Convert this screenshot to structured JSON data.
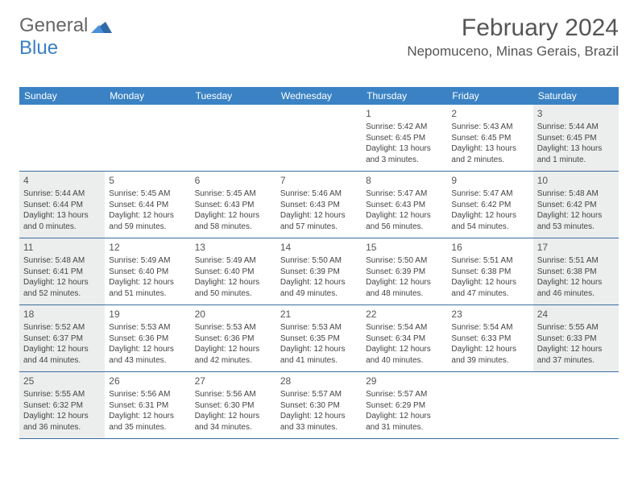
{
  "brand": {
    "part1": "General",
    "part2": "Blue"
  },
  "title": "February 2024",
  "location": "Nepomuceno, Minas Gerais, Brazil",
  "weekdays": [
    "Sunday",
    "Monday",
    "Tuesday",
    "Wednesday",
    "Thursday",
    "Friday",
    "Saturday"
  ],
  "leading_blanks": 4,
  "colors": {
    "header_bg": "#3a82c4",
    "rule": "#3a6ea0",
    "shade": "#eceded",
    "text": "#555"
  },
  "fonts": {
    "title_size": 30,
    "location_size": 17,
    "weekday_size": 12,
    "daynum_size": 12,
    "body_size": 10
  },
  "days": [
    {
      "n": 1,
      "shade": false,
      "sunrise": "5:42 AM",
      "sunset": "6:45 PM",
      "daylight": "13 hours and 3 minutes."
    },
    {
      "n": 2,
      "shade": false,
      "sunrise": "5:43 AM",
      "sunset": "6:45 PM",
      "daylight": "13 hours and 2 minutes."
    },
    {
      "n": 3,
      "shade": true,
      "sunrise": "5:44 AM",
      "sunset": "6:45 PM",
      "daylight": "13 hours and 1 minute."
    },
    {
      "n": 4,
      "shade": true,
      "sunrise": "5:44 AM",
      "sunset": "6:44 PM",
      "daylight": "13 hours and 0 minutes."
    },
    {
      "n": 5,
      "shade": false,
      "sunrise": "5:45 AM",
      "sunset": "6:44 PM",
      "daylight": "12 hours and 59 minutes."
    },
    {
      "n": 6,
      "shade": false,
      "sunrise": "5:45 AM",
      "sunset": "6:43 PM",
      "daylight": "12 hours and 58 minutes."
    },
    {
      "n": 7,
      "shade": false,
      "sunrise": "5:46 AM",
      "sunset": "6:43 PM",
      "daylight": "12 hours and 57 minutes."
    },
    {
      "n": 8,
      "shade": false,
      "sunrise": "5:47 AM",
      "sunset": "6:43 PM",
      "daylight": "12 hours and 56 minutes."
    },
    {
      "n": 9,
      "shade": false,
      "sunrise": "5:47 AM",
      "sunset": "6:42 PM",
      "daylight": "12 hours and 54 minutes."
    },
    {
      "n": 10,
      "shade": true,
      "sunrise": "5:48 AM",
      "sunset": "6:42 PM",
      "daylight": "12 hours and 53 minutes."
    },
    {
      "n": 11,
      "shade": true,
      "sunrise": "5:48 AM",
      "sunset": "6:41 PM",
      "daylight": "12 hours and 52 minutes."
    },
    {
      "n": 12,
      "shade": false,
      "sunrise": "5:49 AM",
      "sunset": "6:40 PM",
      "daylight": "12 hours and 51 minutes."
    },
    {
      "n": 13,
      "shade": false,
      "sunrise": "5:49 AM",
      "sunset": "6:40 PM",
      "daylight": "12 hours and 50 minutes."
    },
    {
      "n": 14,
      "shade": false,
      "sunrise": "5:50 AM",
      "sunset": "6:39 PM",
      "daylight": "12 hours and 49 minutes."
    },
    {
      "n": 15,
      "shade": false,
      "sunrise": "5:50 AM",
      "sunset": "6:39 PM",
      "daylight": "12 hours and 48 minutes."
    },
    {
      "n": 16,
      "shade": false,
      "sunrise": "5:51 AM",
      "sunset": "6:38 PM",
      "daylight": "12 hours and 47 minutes."
    },
    {
      "n": 17,
      "shade": true,
      "sunrise": "5:51 AM",
      "sunset": "6:38 PM",
      "daylight": "12 hours and 46 minutes."
    },
    {
      "n": 18,
      "shade": true,
      "sunrise": "5:52 AM",
      "sunset": "6:37 PM",
      "daylight": "12 hours and 44 minutes."
    },
    {
      "n": 19,
      "shade": false,
      "sunrise": "5:53 AM",
      "sunset": "6:36 PM",
      "daylight": "12 hours and 43 minutes."
    },
    {
      "n": 20,
      "shade": false,
      "sunrise": "5:53 AM",
      "sunset": "6:36 PM",
      "daylight": "12 hours and 42 minutes."
    },
    {
      "n": 21,
      "shade": false,
      "sunrise": "5:53 AM",
      "sunset": "6:35 PM",
      "daylight": "12 hours and 41 minutes."
    },
    {
      "n": 22,
      "shade": false,
      "sunrise": "5:54 AM",
      "sunset": "6:34 PM",
      "daylight": "12 hours and 40 minutes."
    },
    {
      "n": 23,
      "shade": false,
      "sunrise": "5:54 AM",
      "sunset": "6:33 PM",
      "daylight": "12 hours and 39 minutes."
    },
    {
      "n": 24,
      "shade": true,
      "sunrise": "5:55 AM",
      "sunset": "6:33 PM",
      "daylight": "12 hours and 37 minutes."
    },
    {
      "n": 25,
      "shade": true,
      "sunrise": "5:55 AM",
      "sunset": "6:32 PM",
      "daylight": "12 hours and 36 minutes."
    },
    {
      "n": 26,
      "shade": false,
      "sunrise": "5:56 AM",
      "sunset": "6:31 PM",
      "daylight": "12 hours and 35 minutes."
    },
    {
      "n": 27,
      "shade": false,
      "sunrise": "5:56 AM",
      "sunset": "6:30 PM",
      "daylight": "12 hours and 34 minutes."
    },
    {
      "n": 28,
      "shade": false,
      "sunrise": "5:57 AM",
      "sunset": "6:30 PM",
      "daylight": "12 hours and 33 minutes."
    },
    {
      "n": 29,
      "shade": false,
      "sunrise": "5:57 AM",
      "sunset": "6:29 PM",
      "daylight": "12 hours and 31 minutes."
    }
  ],
  "labels": {
    "sunrise_prefix": "Sunrise: ",
    "sunset_prefix": "Sunset: ",
    "daylight_prefix": "Daylight: "
  }
}
